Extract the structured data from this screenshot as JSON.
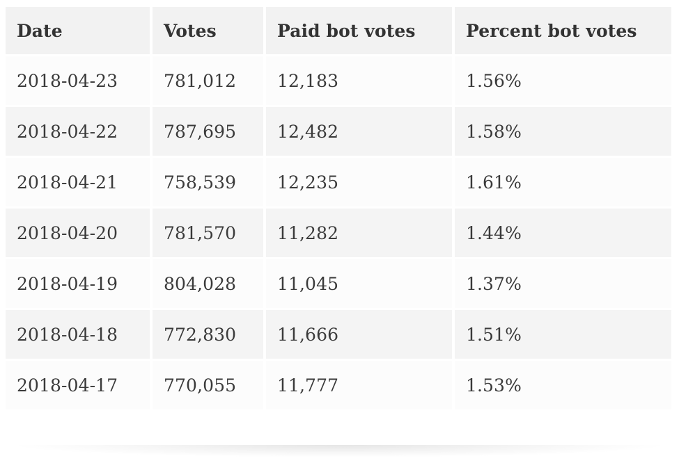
{
  "table": {
    "headers": [
      "Date",
      "Votes",
      "Paid bot votes",
      "Percent bot votes"
    ],
    "rows": [
      [
        "2018-04-23",
        "781,012",
        "12,183",
        "1.56%"
      ],
      [
        "2018-04-22",
        "787,695",
        "12,482",
        "1.58%"
      ],
      [
        "2018-04-21",
        "758,539",
        "12,235",
        "1.61%"
      ],
      [
        "2018-04-20",
        "781,570",
        "11,282",
        "1.44%"
      ],
      [
        "2018-04-19",
        "804,028",
        "11,045",
        "1.37%"
      ],
      [
        "2018-04-18",
        "772,830",
        "11,666",
        "1.51%"
      ],
      [
        "2018-04-17",
        "770,055",
        "11,777",
        "1.53%"
      ]
    ]
  },
  "colors": {
    "header_bg": "#f2f2f2",
    "row_odd_bg": "#fcfcfc",
    "row_even_bg": "#f4f4f4",
    "text": "#333333"
  }
}
